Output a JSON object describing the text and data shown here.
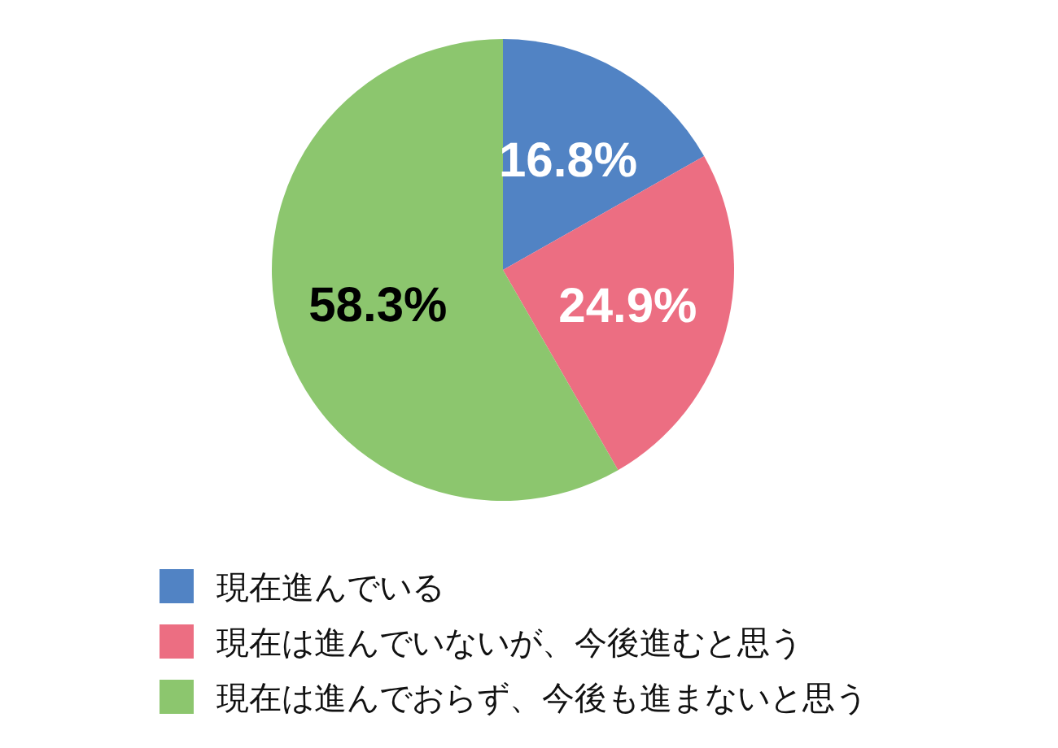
{
  "chart_data": {
    "type": "pie",
    "categories": [
      "現在進んでいる",
      "現在は進んでいないが、今後進むと思う",
      "現在は進んでおらず、今後も進まないと思う"
    ],
    "values": [
      16.8,
      24.9,
      58.3
    ],
    "colors": [
      "#5183c4",
      "#ec6e82",
      "#8cc66e"
    ],
    "value_labels": [
      "16.8%",
      "24.9%",
      "58.3%"
    ],
    "legend": "bottom"
  }
}
